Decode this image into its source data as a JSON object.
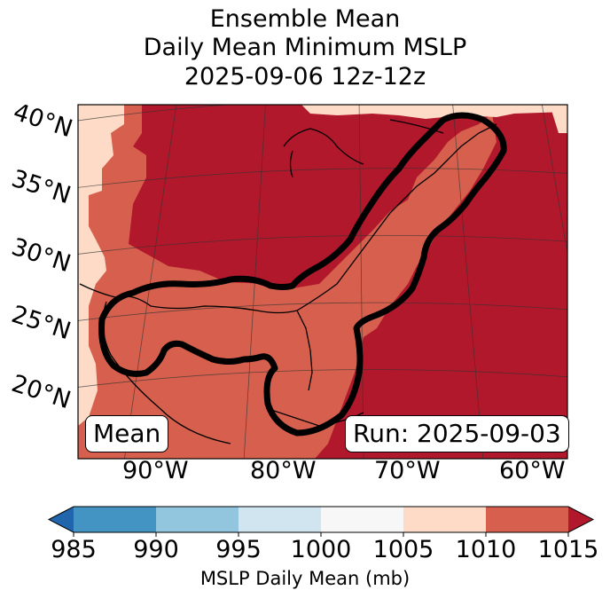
{
  "title": {
    "line1": "Ensemble Mean",
    "line2": "Daily Mean Minimum MSLP",
    "line3": "2025-09-06 12z-12z"
  },
  "map": {
    "lat_labels": [
      "40°N",
      "35°N",
      "30°N",
      "25°N",
      "20°N"
    ],
    "lon_labels": [
      "90°W",
      "80°W",
      "70°W",
      "60°W"
    ],
    "mean_box": "Mean",
    "run_box": "Run: 2025-09-03",
    "colors": {
      "band_1005_1010": "#fddbc7",
      "band_1010_1015": "#d6604d",
      "band_above_1015": "#b2182b",
      "contour": "#000000"
    }
  },
  "colorbar": {
    "ticks": [
      "985",
      "990",
      "995",
      "1000",
      "1005",
      "1010",
      "1015"
    ],
    "label": "MSLP Daily Mean (mb)",
    "segments": [
      "#2166ac",
      "#4393c3",
      "#92c5de",
      "#d1e5f0",
      "#f7f7f7",
      "#fddbc7",
      "#d6604d",
      "#b2182b"
    ]
  }
}
